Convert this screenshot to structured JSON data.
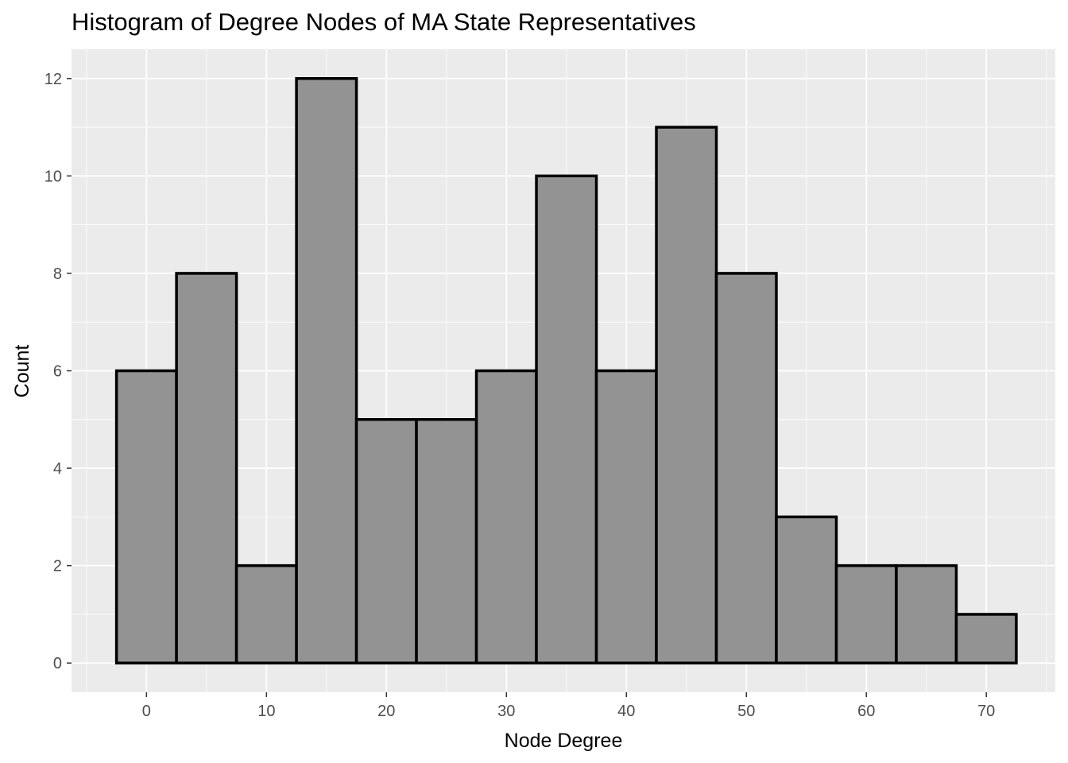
{
  "chart_data": {
    "type": "bar",
    "title": "Histogram of Degree Nodes of MA State Representatives",
    "xlabel": "Node Degree",
    "ylabel": "Count",
    "bin_width": 5,
    "bin_centers": [
      0,
      5,
      10,
      15,
      20,
      25,
      30,
      35,
      40,
      45,
      50,
      55,
      60,
      65,
      70
    ],
    "values": [
      6,
      8,
      2,
      12,
      5,
      5,
      6,
      10,
      6,
      11,
      8,
      3,
      2,
      2,
      1
    ],
    "xlim": [
      -6.25,
      75.75
    ],
    "ylim": [
      -0.6,
      12.6
    ],
    "x_ticks": [
      "0",
      "10",
      "20",
      "30",
      "40",
      "50",
      "60",
      "70"
    ],
    "y_ticks": [
      "0",
      "2",
      "4",
      "6",
      "8",
      "10",
      "12"
    ],
    "grid": true,
    "colors": {
      "panel": "#ebebeb",
      "grid_major": "#ffffff",
      "bar_fill": "#939393",
      "bar_outline": "#000000",
      "tick_text": "#4d4d4d",
      "tick_mark": "#333333"
    }
  }
}
